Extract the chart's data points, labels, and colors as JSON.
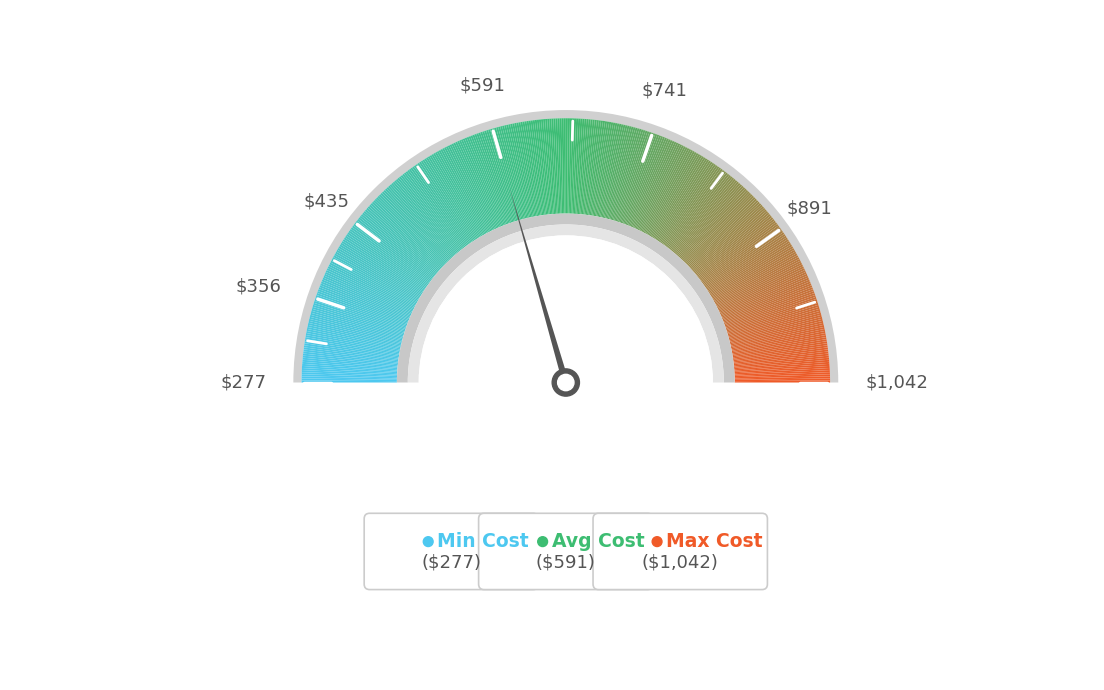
{
  "min_val": 277,
  "avg_val": 591,
  "max_val": 1042,
  "label_values": [
    277,
    356,
    435,
    591,
    741,
    891,
    1042
  ],
  "label_strings": [
    "$277",
    "$356",
    "$435",
    "$591",
    "$741",
    "$891",
    "$1,042"
  ],
  "all_tick_values": [
    277,
    316,
    356,
    395,
    435,
    513,
    591,
    666,
    741,
    816,
    891,
    966,
    1042
  ],
  "min_cost_label": "Min Cost",
  "avg_cost_label": "Avg Cost",
  "max_cost_label": "Max Cost",
  "min_cost_val": "($277)",
  "avg_cost_val": "($591)",
  "max_cost_val": "($1,042)",
  "color_min": "#4DC8F0",
  "color_avg": "#3DBD72",
  "color_max": "#F05A28",
  "background_color": "#ffffff",
  "needle_color": "#555555",
  "tick_color": "#ffffff",
  "label_color": "#555555",
  "box_border_color": "#cccccc",
  "outer_ring_color": "#d0d0d0",
  "inner_ring_color_dark": "#cccccc",
  "inner_ring_color_light": "#e8e8e8"
}
